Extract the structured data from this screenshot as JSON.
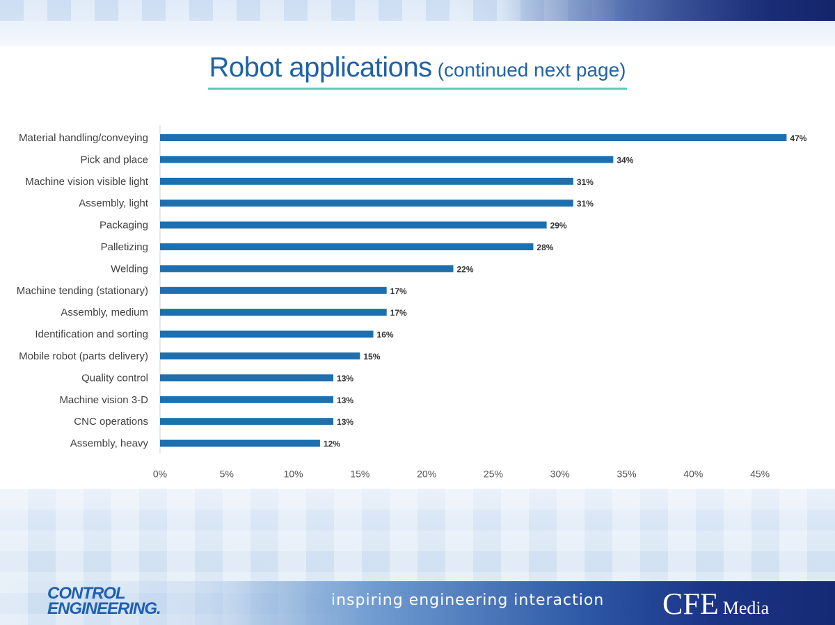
{
  "title": {
    "main": "Robot applications",
    "sub": "(continued next page)"
  },
  "footer": {
    "logo_line1": "Control",
    "logo_line2": "Engineering.",
    "tagline": "inspiring engineering interaction",
    "brand_main": "CFE",
    "brand_sub": "Media"
  },
  "colors": {
    "bar": "#1e6fae",
    "title": "#1f62a8",
    "underline": "#5cc9b8"
  },
  "chart_data": {
    "type": "bar",
    "orientation": "horizontal",
    "title": "Robot applications (continued next page)",
    "categories": [
      "Material handling/conveying",
      "Pick and place",
      "Machine vision visible light",
      "Assembly, light",
      "Packaging",
      "Palletizing",
      "Welding",
      "Machine tending (stationary)",
      "Assembly, medium",
      "Identification and sorting",
      "Mobile robot (parts delivery)",
      "Quality control",
      "Machine vision 3-D",
      "CNC operations",
      "Assembly, heavy"
    ],
    "values": [
      47,
      34,
      31,
      31,
      29,
      28,
      22,
      17,
      17,
      16,
      15,
      13,
      13,
      13,
      12
    ],
    "data_labels": [
      "47%",
      "34%",
      "31%",
      "31%",
      "29%",
      "28%",
      "22%",
      "17%",
      "17%",
      "16%",
      "15%",
      "13%",
      "13%",
      "13%",
      "12%"
    ],
    "xticks": [
      "0%",
      "5%",
      "10%",
      "15%",
      "20%",
      "25%",
      "30%",
      "35%",
      "40%",
      "45%"
    ],
    "xlim": [
      0,
      47.5
    ],
    "tick_step": 5,
    "grid": false,
    "legend": "none"
  }
}
